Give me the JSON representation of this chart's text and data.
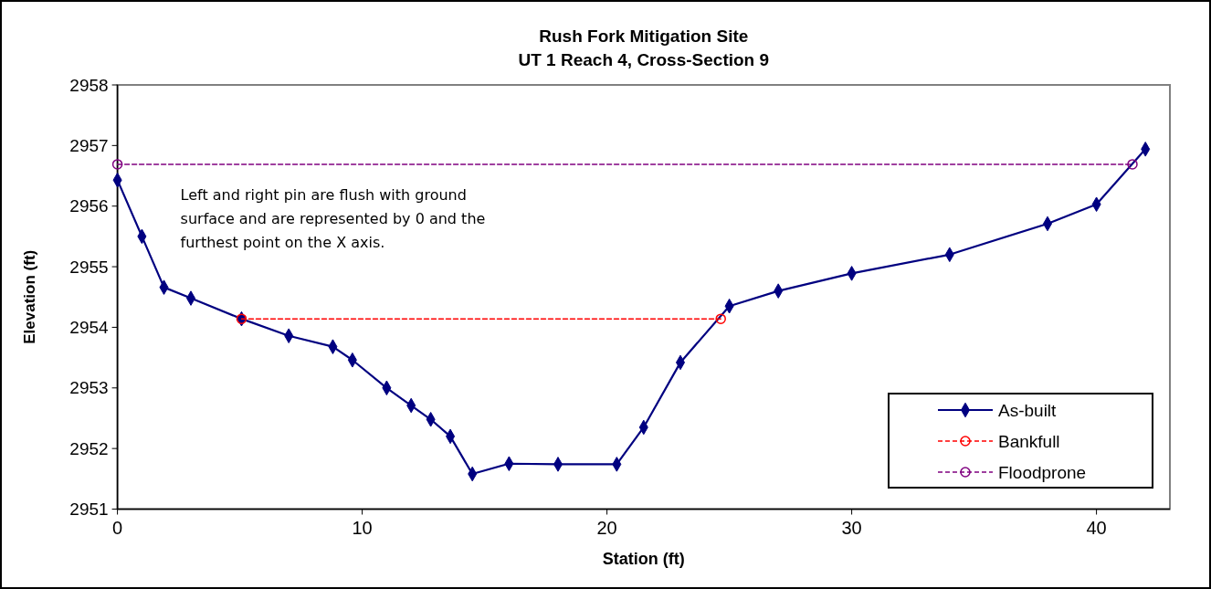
{
  "chart_data": {
    "type": "line",
    "title": "Rush Fork Mitigation Site",
    "subtitle": "UT 1 Reach 4, Cross-Section 9",
    "xlabel": "Station (ft)",
    "ylabel": "Elevation (ft)",
    "xlim": [
      0,
      43
    ],
    "xticks": [
      0,
      10,
      20,
      30,
      40
    ],
    "ylim": [
      2951,
      2958
    ],
    "yticks": [
      2951,
      2952,
      2953,
      2954,
      2955,
      2956,
      2957,
      2958
    ],
    "grid": false,
    "legend": "bottom right",
    "annotations": [
      "Left and right pin are flush with ground surface and are represented by 0 and the furthest point on the X axis."
    ],
    "series": [
      {
        "name": "As-built",
        "color": "#000080",
        "marker": "diamond",
        "line_style": "solid",
        "x": [
          0,
          1.0,
          1.9,
          3.0,
          5.07,
          7.0,
          8.8,
          9.6,
          11.0,
          12.0,
          12.8,
          13.6,
          14.5,
          16.0,
          18.0,
          20.4,
          21.5,
          23.0,
          25.0,
          27.0,
          30.0,
          34.0,
          38.0,
          40.0,
          42.0
        ],
        "values": [
          2956.43,
          2955.5,
          2954.66,
          2954.48,
          2954.14,
          2953.86,
          2953.68,
          2953.46,
          2953.0,
          2952.71,
          2952.48,
          2952.2,
          2951.58,
          2951.75,
          2951.74,
          2951.74,
          2952.35,
          2953.42,
          2954.35,
          2954.6,
          2954.89,
          2955.2,
          2955.71,
          2956.03,
          2956.94
        ]
      },
      {
        "name": "Bankfull",
        "color": "#ff0000",
        "marker": "circle",
        "line_style": "dashed",
        "x": [
          5.07,
          24.65
        ],
        "values": [
          2954.14,
          2954.14
        ]
      },
      {
        "name": "Floodprone",
        "color": "#800080",
        "marker": "circle",
        "line_style": "dashed",
        "x": [
          0,
          41.47
        ],
        "values": [
          2956.69,
          2956.69
        ]
      }
    ]
  }
}
